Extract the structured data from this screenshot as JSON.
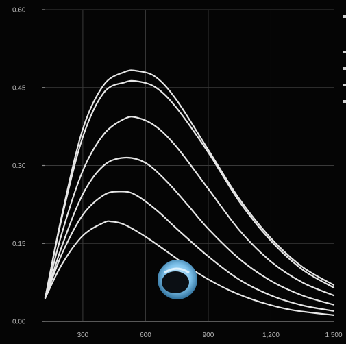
{
  "chart_data": {
    "type": "line",
    "title": "",
    "xlabel": "",
    "ylabel": "",
    "xlim": [
      120,
      1500
    ],
    "ylim": [
      0,
      0.6
    ],
    "grid": true,
    "x_ticks": [
      300,
      600,
      900,
      1200,
      1500
    ],
    "x_tick_labels": [
      "300",
      "600",
      "900",
      "1,200",
      "1,500"
    ],
    "y_ticks": [
      0,
      0.15,
      0.3,
      0.45,
      0.6
    ],
    "y_tick_labels": [
      "0.00",
      "0.15",
      "0.30",
      "0.45",
      "0.60"
    ],
    "line_color": "#e6e6e6",
    "series": [
      {
        "x": [
          120,
          200,
          300,
          400,
          500,
          560,
          650,
          750,
          900,
          1050,
          1200,
          1350,
          1500
        ],
        "values": [
          0.045,
          0.205,
          0.37,
          0.455,
          0.48,
          0.482,
          0.47,
          0.425,
          0.33,
          0.235,
          0.16,
          0.105,
          0.07
        ]
      },
      {
        "x": [
          120,
          200,
          300,
          400,
          500,
          560,
          650,
          750,
          900,
          1050,
          1200,
          1350,
          1500
        ],
        "values": [
          0.045,
          0.2,
          0.355,
          0.44,
          0.46,
          0.462,
          0.45,
          0.41,
          0.325,
          0.23,
          0.155,
          0.1,
          0.065
        ]
      },
      {
        "x": [
          120,
          200,
          300,
          400,
          500,
          560,
          650,
          750,
          900,
          1050,
          1200,
          1350,
          1500
        ],
        "values": [
          0.045,
          0.17,
          0.29,
          0.36,
          0.39,
          0.392,
          0.375,
          0.335,
          0.255,
          0.175,
          0.115,
          0.075,
          0.05
        ]
      },
      {
        "x": [
          120,
          200,
          300,
          400,
          500,
          600,
          700,
          800,
          900,
          1050,
          1200,
          1350,
          1500
        ],
        "values": [
          0.045,
          0.145,
          0.245,
          0.3,
          0.315,
          0.305,
          0.27,
          0.225,
          0.178,
          0.12,
          0.078,
          0.05,
          0.032
        ]
      },
      {
        "x": [
          120,
          200,
          300,
          400,
          480,
          550,
          650,
          750,
          900,
          1050,
          1200,
          1350,
          1500
        ],
        "values": [
          0.045,
          0.13,
          0.205,
          0.243,
          0.25,
          0.244,
          0.215,
          0.178,
          0.125,
          0.08,
          0.05,
          0.031,
          0.02
        ]
      },
      {
        "x": [
          120,
          200,
          300,
          400,
          440,
          500,
          600,
          700,
          850,
          1000,
          1150,
          1300,
          1500
        ],
        "values": [
          0.045,
          0.11,
          0.165,
          0.19,
          0.192,
          0.186,
          0.163,
          0.135,
          0.093,
          0.06,
          0.037,
          0.022,
          0.012
        ]
      }
    ]
  }
}
